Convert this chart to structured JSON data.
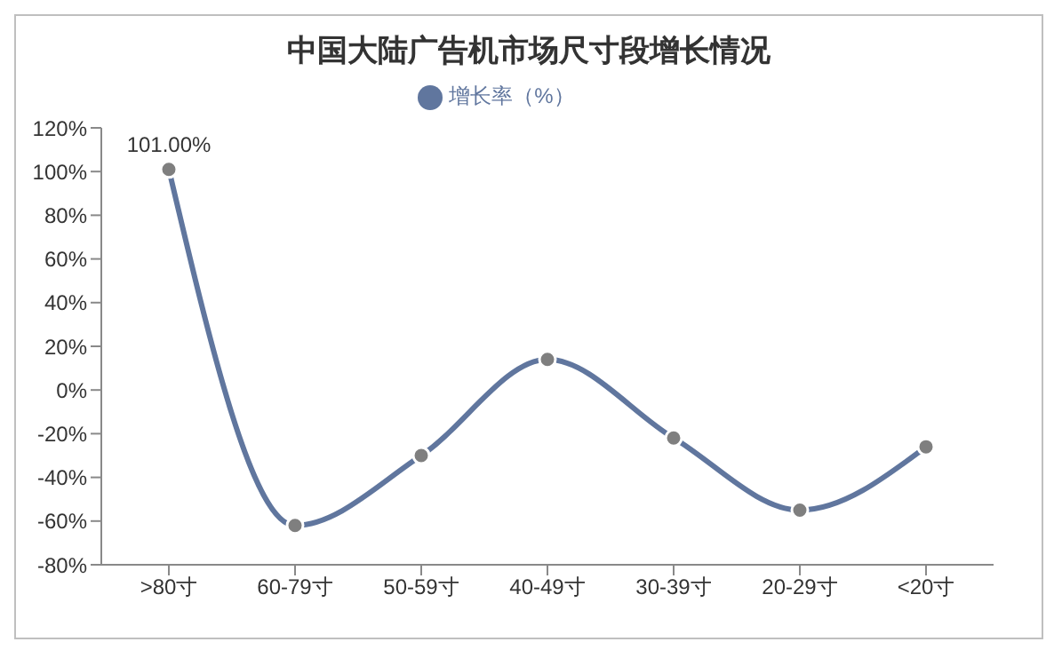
{
  "chart_data": {
    "type": "line",
    "title": "中国大陆广告机市场尺寸段增长情况",
    "categories": [
      ">80寸",
      "60-79寸",
      "50-59寸",
      "40-49寸",
      "30-39寸",
      "20-29寸",
      "<20寸"
    ],
    "series": [
      {
        "name": "增长率（%）",
        "color": "#60769e",
        "values": [
          101,
          -62,
          -30,
          14,
          -22,
          -55,
          -26
        ],
        "value_labels": [
          "101.00%",
          null,
          null,
          null,
          null,
          null,
          null
        ]
      }
    ],
    "ylim": [
      -80,
      120
    ],
    "yticks": [
      {
        "value": -80,
        "label": "-80%"
      },
      {
        "value": -60,
        "label": "-60%"
      },
      {
        "value": -40,
        "label": "-40%"
      },
      {
        "value": -20,
        "label": "-20%"
      },
      {
        "value": 0,
        "label": "0%"
      },
      {
        "value": 20,
        "label": "20%"
      },
      {
        "value": 40,
        "label": "40%"
      },
      {
        "value": 60,
        "label": "60%"
      },
      {
        "value": 80,
        "label": "80%"
      },
      {
        "value": 100,
        "label": "100%"
      },
      {
        "value": 120,
        "label": "120%"
      }
    ],
    "grid": false,
    "legend": "top",
    "marker": "circle",
    "line_style": "solid"
  }
}
